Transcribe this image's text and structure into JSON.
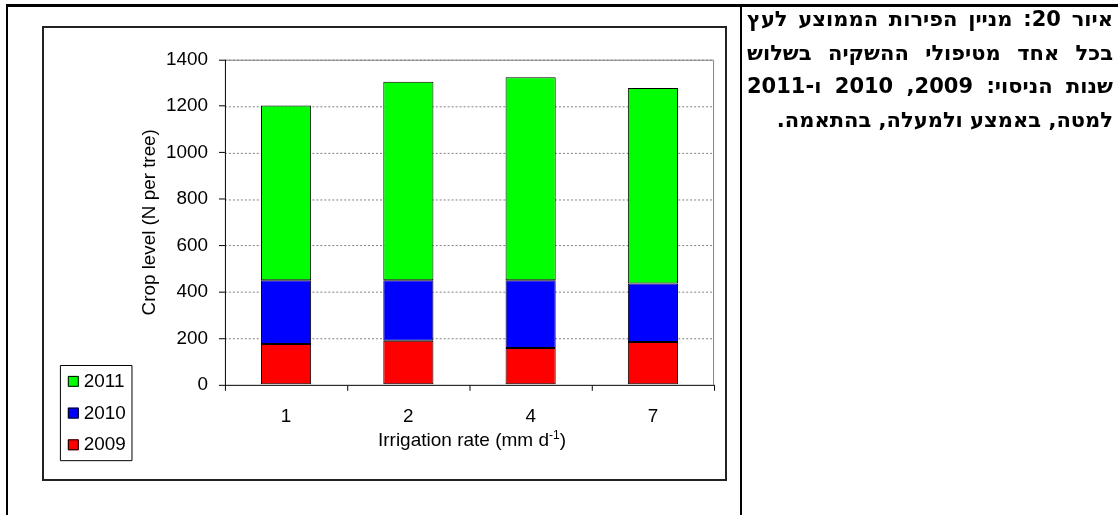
{
  "chart_data": {
    "type": "bar",
    "title": "איור 20: מניין הפירות הממוצע לעץ בכל אחד מטיפולי ההשקיה בשלוש שנות הניסוי: 2009, 2010 ו-2011 למטה, באמצע ולמעלה, בהתאמה.",
    "xlabel": "Irrigation rate (mm d$^{-1}$)",
    "ylabel": "Crop level (N per tree)",
    "categories": [
      "1",
      "2",
      "4",
      "7"
    ],
    "series": [
      {
        "name": "2009",
        "color": "#ff0000",
        "values": [
          176,
          190,
          159,
          184
        ]
      },
      {
        "name": "2010",
        "color": "#0000ff",
        "values": [
          274,
          260,
          291,
          252
        ]
      },
      {
        "name": "2011",
        "color": "#00ff00",
        "values": [
          753,
          855,
          875,
          842
        ]
      }
    ],
    "stacked": true,
    "ylim": [
      0,
      1400
    ],
    "yticks": [
      0,
      200,
      400,
      600,
      800,
      1000,
      1200,
      1400
    ],
    "grid": "y",
    "legend": "bottom left"
  }
}
